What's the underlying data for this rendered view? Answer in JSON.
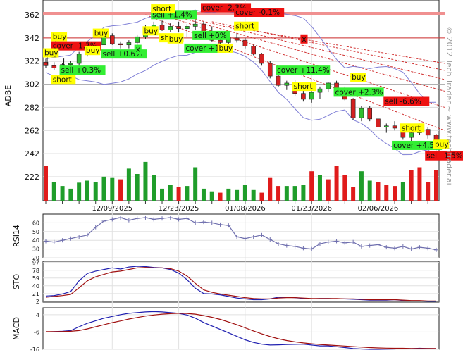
{
  "watermark": "© 2012 Tech Trader ~ www.techtrader.ai",
  "colors": {
    "up_bar": "#1f9d2a",
    "down_bar": "#e01b1b",
    "up_candle": "#2fbf2f",
    "down_candle": "#d42020",
    "band_line": "#7f7fd6",
    "resistance": "#d03030",
    "support": "#a8a8a8",
    "sto_blue": "#2020b0",
    "sto_red": "#a01010",
    "macd_blue": "#2020b0",
    "macd_red": "#a01010",
    "label_yellow": "#ffff00",
    "label_green": "#33ee33",
    "label_red": "#ee1111",
    "rsi_line": "#6f6fae"
  },
  "chart_data": [
    {
      "type": "candlestick",
      "ylabel": "ADBE",
      "yticks": [
        222,
        242,
        262,
        282,
        302,
        322,
        342,
        362
      ],
      "ylim": [
        200,
        370
      ],
      "x_tick_labels": [
        {
          "idx": 8,
          "label": "12/09/2025"
        },
        {
          "idx": 16,
          "label": "12/23/2025"
        },
        {
          "idx": 24,
          "label": "01/08/2026"
        },
        {
          "idx": 32,
          "label": "01/23/2026"
        },
        {
          "idx": 40,
          "label": "02/06/2026"
        }
      ],
      "n_bars": 48,
      "ohlc": [
        [
          321,
          324,
          316,
          318
        ],
        [
          318,
          321,
          314,
          316
        ],
        [
          316,
          320,
          313,
          319
        ],
        [
          319,
          322,
          316,
          320
        ],
        [
          320,
          330,
          318,
          328
        ],
        [
          328,
          334,
          326,
          331
        ],
        [
          331,
          338,
          329,
          336
        ],
        [
          336,
          347,
          334,
          344
        ],
        [
          344,
          346,
          336,
          337
        ],
        [
          337,
          339,
          333,
          336
        ],
        [
          336,
          340,
          333,
          338
        ],
        [
          338,
          345,
          336,
          343
        ],
        [
          343,
          353,
          341,
          351
        ],
        [
          351,
          356,
          347,
          353
        ],
        [
          353,
          357,
          348,
          349
        ],
        [
          349,
          355,
          347,
          352
        ],
        [
          352,
          356,
          347,
          350
        ],
        [
          350,
          354,
          343,
          352
        ],
        [
          352,
          357,
          349,
          354
        ],
        [
          354,
          356,
          345,
          347
        ],
        [
          347,
          352,
          339,
          340
        ],
        [
          340,
          344,
          335,
          338
        ],
        [
          338,
          345,
          336,
          342
        ],
        [
          342,
          346,
          338,
          340
        ],
        [
          340,
          342,
          333,
          335
        ],
        [
          335,
          336,
          327,
          328
        ],
        [
          328,
          329,
          318,
          320
        ],
        [
          320,
          322,
          307,
          309
        ],
        [
          309,
          311,
          300,
          301
        ],
        [
          301,
          305,
          297,
          303
        ],
        [
          303,
          306,
          292,
          294
        ],
        [
          294,
          297,
          287,
          289
        ],
        [
          289,
          296,
          286,
          295
        ],
        [
          295,
          300,
          289,
          298
        ],
        [
          298,
          304,
          295,
          303
        ],
        [
          303,
          305,
          297,
          298
        ],
        [
          298,
          300,
          288,
          289
        ],
        [
          289,
          290,
          271,
          273
        ],
        [
          273,
          283,
          270,
          281
        ],
        [
          281,
          283,
          270,
          272
        ],
        [
          272,
          274,
          263,
          265
        ],
        [
          265,
          268,
          260,
          266
        ],
        [
          266,
          270,
          262,
          264
        ],
        [
          264,
          267,
          254,
          256
        ],
        [
          256,
          262,
          253,
          260
        ],
        [
          260,
          268,
          258,
          263
        ],
        [
          263,
          265,
          255,
          258
        ],
        [
          258,
          259,
          245,
          248
        ]
      ],
      "volume": [
        {
          "v": 52,
          "dir": "down"
        },
        {
          "v": 28,
          "dir": "up"
        },
        {
          "v": 22,
          "dir": "up"
        },
        {
          "v": 18,
          "dir": "up"
        },
        {
          "v": 27,
          "dir": "up"
        },
        {
          "v": 30,
          "dir": "up"
        },
        {
          "v": 28,
          "dir": "up"
        },
        {
          "v": 36,
          "dir": "up"
        },
        {
          "v": 34,
          "dir": "up"
        },
        {
          "v": 32,
          "dir": "down"
        },
        {
          "v": 48,
          "dir": "up"
        },
        {
          "v": 40,
          "dir": "up"
        },
        {
          "v": 58,
          "dir": "up"
        },
        {
          "v": 38,
          "dir": "up"
        },
        {
          "v": 18,
          "dir": "up"
        },
        {
          "v": 24,
          "dir": "up"
        },
        {
          "v": 20,
          "dir": "down"
        },
        {
          "v": 22,
          "dir": "up"
        },
        {
          "v": 50,
          "dir": "up"
        },
        {
          "v": 18,
          "dir": "up"
        },
        {
          "v": 14,
          "dir": "up"
        },
        {
          "v": 12,
          "dir": "down"
        },
        {
          "v": 18,
          "dir": "up"
        },
        {
          "v": 16,
          "dir": "up"
        },
        {
          "v": 24,
          "dir": "up"
        },
        {
          "v": 16,
          "dir": "up"
        },
        {
          "v": 12,
          "dir": "down"
        },
        {
          "v": 34,
          "dir": "down"
        },
        {
          "v": 22,
          "dir": "down"
        },
        {
          "v": 22,
          "dir": "up"
        },
        {
          "v": 22,
          "dir": "up"
        },
        {
          "v": 24,
          "dir": "up"
        },
        {
          "v": 44,
          "dir": "down"
        },
        {
          "v": 38,
          "dir": "up"
        },
        {
          "v": 32,
          "dir": "down"
        },
        {
          "v": 52,
          "dir": "down"
        },
        {
          "v": 38,
          "dir": "down"
        },
        {
          "v": 20,
          "dir": "down"
        },
        {
          "v": 44,
          "dir": "up"
        },
        {
          "v": 30,
          "dir": "up"
        },
        {
          "v": 28,
          "dir": "down"
        },
        {
          "v": 24,
          "dir": "down"
        },
        {
          "v": 22,
          "dir": "down"
        },
        {
          "v": 28,
          "dir": "up"
        },
        {
          "v": 46,
          "dir": "down"
        },
        {
          "v": 50,
          "dir": "down"
        },
        {
          "v": 28,
          "dir": "down"
        },
        {
          "v": 46,
          "dir": "down"
        }
      ],
      "signals": [
        {
          "text": "buy",
          "idx": 1,
          "price": 341,
          "color": "yellow",
          "arrow": "up"
        },
        {
          "text": "cover -1.7%",
          "idx": 1,
          "price": 333,
          "color": "red"
        },
        {
          "text": "buy",
          "idx": 5,
          "price": 329,
          "color": "yellow"
        },
        {
          "text": "sell +0.6%",
          "idx": 7,
          "price": 326,
          "color": "green"
        },
        {
          "text": "sell +0.3%",
          "idx": 2,
          "price": 312,
          "color": "green",
          "arrow": "down"
        },
        {
          "text": "short",
          "idx": 1,
          "price": 304,
          "color": "yellow"
        },
        {
          "text": "buy",
          "idx": 0,
          "price": 327,
          "color": "yellow",
          "arrow": "up"
        },
        {
          "text": "buy",
          "idx": 6,
          "price": 344,
          "color": "yellow"
        },
        {
          "text": "sell +1.4%",
          "idx": 13,
          "price": 360,
          "color": "green"
        },
        {
          "text": "short",
          "idx": 13,
          "price": 365,
          "color": "yellow"
        },
        {
          "text": "buy",
          "idx": 12,
          "price": 346,
          "color": "yellow"
        },
        {
          "text": "short",
          "idx": 14,
          "price": 340,
          "color": "yellow"
        },
        {
          "text": "x",
          "idx": 11,
          "price": 330,
          "color": "green"
        },
        {
          "text": "cover -2.3%",
          "idx": 19,
          "price": 366,
          "color": "red"
        },
        {
          "text": "buy",
          "idx": 15,
          "price": 339,
          "color": "yellow"
        },
        {
          "text": "sell +0%",
          "idx": 18,
          "price": 342,
          "color": "green"
        },
        {
          "text": "cover +1%",
          "idx": 17,
          "price": 331,
          "color": "green"
        },
        {
          "text": "cover -0.1%",
          "idx": 23,
          "price": 362,
          "color": "red"
        },
        {
          "text": "short",
          "idx": 23,
          "price": 350,
          "color": "yellow"
        },
        {
          "text": "buy",
          "idx": 21,
          "price": 331,
          "color": "yellow"
        },
        {
          "text": "x",
          "idx": 31,
          "price": 339,
          "color": "red"
        },
        {
          "text": "cover +11.4%",
          "idx": 28,
          "price": 312,
          "color": "green"
        },
        {
          "text": "short",
          "idx": 30,
          "price": 298,
          "color": "yellow"
        },
        {
          "text": "buy",
          "idx": 37,
          "price": 306,
          "color": "yellow"
        },
        {
          "text": "cover +2.3%",
          "idx": 35,
          "price": 293,
          "color": "green"
        },
        {
          "text": "sell -6.6%",
          "idx": 41,
          "price": 285,
          "color": "red"
        },
        {
          "text": "short",
          "idx": 43,
          "price": 262,
          "color": "yellow"
        },
        {
          "text": "cover +4.5%",
          "idx": 42,
          "price": 247,
          "color": "green"
        },
        {
          "text": "sell -1.5%",
          "idx": 46,
          "price": 238,
          "color": "red"
        },
        {
          "text": "buy",
          "idx": 47,
          "price": 248,
          "color": "yellow"
        }
      ]
    },
    {
      "type": "line",
      "ylabel": "RSI14",
      "yticks": [
        20,
        30,
        40,
        50,
        60
      ],
      "ylim": [
        20,
        70
      ],
      "values": [
        39,
        38,
        40,
        42,
        44,
        46,
        55,
        62,
        64,
        66,
        63,
        65,
        66,
        64,
        65,
        66,
        64,
        65,
        60,
        61,
        60,
        58,
        57,
        44,
        42,
        44,
        46,
        41,
        36,
        34,
        33,
        31,
        30,
        36,
        38,
        39,
        37,
        38,
        33,
        34,
        35,
        32,
        31,
        33,
        30,
        32,
        31,
        29
      ]
    },
    {
      "type": "line",
      "ylabel": "STO",
      "yticks": [
        2,
        21,
        40,
        59,
        78,
        97
      ],
      "ylim": [
        0,
        100
      ],
      "series": [
        {
          "color_key": "sto_blue",
          "values": [
            15,
            16,
            20,
            26,
            52,
            70,
            76,
            80,
            84,
            81,
            86,
            88,
            87,
            85,
            84,
            80,
            71,
            55,
            34,
            21,
            20,
            18,
            14,
            10,
            8,
            6,
            6,
            8,
            12,
            12,
            11,
            9,
            8,
            9,
            9,
            8,
            8,
            7,
            6,
            5,
            5,
            5,
            6,
            4,
            3,
            3,
            2,
            2
          ]
        },
        {
          "color_key": "sto_red",
          "values": [
            12,
            14,
            16,
            19,
            35,
            52,
            62,
            68,
            74,
            76,
            80,
            84,
            85,
            84,
            84,
            82,
            76,
            64,
            46,
            30,
            24,
            20,
            17,
            14,
            11,
            9,
            8,
            8,
            10,
            11,
            11,
            10,
            9,
            9,
            9,
            9,
            8,
            8,
            7,
            6,
            6,
            6,
            6,
            5,
            4,
            4,
            3,
            3
          ]
        }
      ]
    },
    {
      "type": "line",
      "ylabel": "MACD",
      "yticks": [
        -16,
        -6,
        4
      ],
      "ylim": [
        -16,
        8
      ],
      "series": [
        {
          "color_key": "macd_blue",
          "values": [
            -6,
            -5.8,
            -5.6,
            -5.2,
            -3,
            -1,
            0.5,
            2,
            3,
            4,
            4.8,
            5.2,
            5.6,
            5.8,
            5.6,
            5.2,
            4.8,
            3.8,
            2,
            -0.5,
            -2.5,
            -4.5,
            -6.5,
            -8.5,
            -10.5,
            -12,
            -13,
            -13.5,
            -13.4,
            -13.2,
            -13.1,
            -13,
            -13.5,
            -14,
            -14,
            -14.5,
            -15,
            -15.5,
            -15.8,
            -16,
            -16,
            -15.9,
            -15.8,
            -15.5,
            -15.6,
            -15.4,
            -15.5,
            -15.6
          ]
        },
        {
          "color_key": "macd_red",
          "values": [
            -5.8,
            -5.8,
            -5.7,
            -5.6,
            -5.2,
            -4.2,
            -3,
            -1.8,
            -0.6,
            0.4,
            1.5,
            2.4,
            3.2,
            3.8,
            4.3,
            4.6,
            4.8,
            4.7,
            4.3,
            3.5,
            2.5,
            1.3,
            -0.2,
            -1.8,
            -3.6,
            -5.4,
            -7.1,
            -8.6,
            -9.9,
            -10.9,
            -11.7,
            -12.3,
            -12.8,
            -13.2,
            -13.5,
            -13.8,
            -14.1,
            -14.4,
            -14.7,
            -15,
            -15.2,
            -15.3,
            -15.4,
            -15.4,
            -15.5,
            -15.5,
            -15.5,
            -15.5
          ]
        }
      ]
    }
  ]
}
